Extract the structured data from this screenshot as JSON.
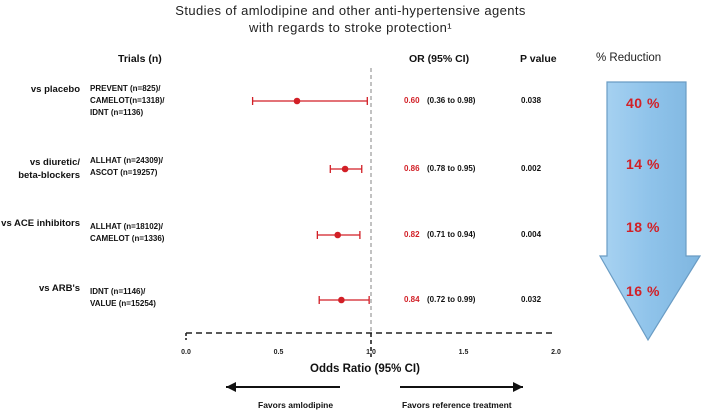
{
  "title_line1": "Studies of amlodipine and other anti-hypertensive agents",
  "title_line2": "with regards to stroke protection¹",
  "headers": {
    "trials": "Trials (n)",
    "or": "OR (95% CI)",
    "pvalue": "P value",
    "reduction": "% Reduction"
  },
  "colors": {
    "marker": "#d21f26",
    "arrow_fill": "#8fc3ea",
    "arrow_stroke": "#6a9cc4",
    "percent_text": "#d21f26"
  },
  "chart_data": {
    "type": "forest",
    "xlabel": "Odds Ratio (95% CI)",
    "xlim": [
      0.0,
      2.0
    ],
    "xticks": [
      "0.0",
      "0.5",
      "1.0",
      "1.5",
      "2.0"
    ],
    "reference_line": 1.0,
    "favors_left": "Favors amlodipine",
    "favors_right": "Favors reference treatment",
    "rows": [
      {
        "comparison": [
          "vs placebo"
        ],
        "trials": [
          "PREVENT (n=825)/",
          "CAMELOT(n=1318)/",
          "IDNT (n=1136)"
        ],
        "or": 0.6,
        "or_text": "0.60",
        "ci_low": 0.36,
        "ci_high": 0.98,
        "ci_text": "(0.36 to 0.98)",
        "p": "0.038",
        "reduction": "40 %"
      },
      {
        "comparison": [
          "vs diuretic/",
          "beta-blockers"
        ],
        "trials": [
          "ALLHAT (n=24309)/",
          "ASCOT (n=19257)"
        ],
        "or": 0.86,
        "or_text": "0.86",
        "ci_low": 0.78,
        "ci_high": 0.95,
        "ci_text": "(0.78 to 0.95)",
        "p": "0.002",
        "reduction": "14 %"
      },
      {
        "comparison": [
          "vs ACE inhibitors"
        ],
        "trials": [
          "ALLHAT (n=18102)/",
          "CAMELOT (n=1336)"
        ],
        "or": 0.82,
        "or_text": "0.82",
        "ci_low": 0.71,
        "ci_high": 0.94,
        "ci_text": "(0.71 to 0.94)",
        "p": "0.004",
        "reduction": "18 %"
      },
      {
        "comparison": [
          "vs ARB's"
        ],
        "trials": [
          "IDNT (n=1146)/",
          "VALUE (n=15254)"
        ],
        "or": 0.84,
        "or_text": "0.84",
        "ci_low": 0.72,
        "ci_high": 0.99,
        "ci_text": "(0.72 to 0.99)",
        "p": "0.032",
        "reduction": "16 %"
      }
    ]
  }
}
